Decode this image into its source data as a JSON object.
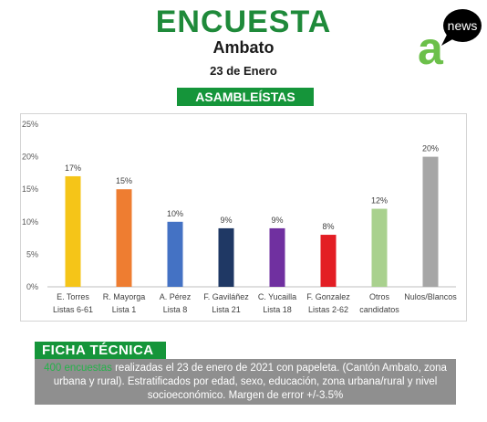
{
  "header": {
    "title": "ENCUESTA",
    "subtitle": "Ambato",
    "date": "23 de Enero",
    "section_label": "ASAMBLEÍSTAS"
  },
  "logo": {
    "letter": "a",
    "badge_text": "news"
  },
  "colors": {
    "brand_green": "#1f8a3a",
    "banner_green": "#15953a",
    "logo_green": "#6cc04a",
    "highlight_green": "#25b24a"
  },
  "chart_data": {
    "type": "bar",
    "categories": [
      [
        "E. Torres",
        "Listas 6-61"
      ],
      [
        "R. Mayorga",
        "Lista 1"
      ],
      [
        "A. Pérez",
        "Lista 8"
      ],
      [
        "F. Gaviláñez",
        "Lista 21"
      ],
      [
        "C. Yucailla",
        "Lista 18"
      ],
      [
        "F. Gonzalez",
        "Listas 2-62"
      ],
      [
        "Otros",
        "candidatos"
      ],
      [
        "Nulos/Blancos"
      ]
    ],
    "values": [
      17,
      15,
      10,
      9,
      9,
      8,
      12,
      20
    ],
    "value_labels": [
      "17%",
      "15%",
      "10%",
      "9%",
      "9%",
      "8%",
      "12%",
      "20%"
    ],
    "colors": [
      "#f5c518",
      "#ee7d31",
      "#4472c4",
      "#1f3864",
      "#7030a0",
      "#e31e24",
      "#a9d18e",
      "#a6a6a6"
    ],
    "yticks": [
      "0%",
      "5%",
      "10%",
      "15%",
      "20%",
      "25%"
    ],
    "ylim": [
      0,
      25
    ],
    "grid": false
  },
  "ficha": {
    "label": "FICHA TÉCNICA",
    "highlight": "400 encuestas",
    "text": " realizadas el 23 de enero de 2021 con papeleta. (Cantón Ambato, zona urbana y rural). Estratificados por edad, sexo, educación, zona urbana/rural y nivel socioeconómico. Margen de error +/-3.5%"
  }
}
